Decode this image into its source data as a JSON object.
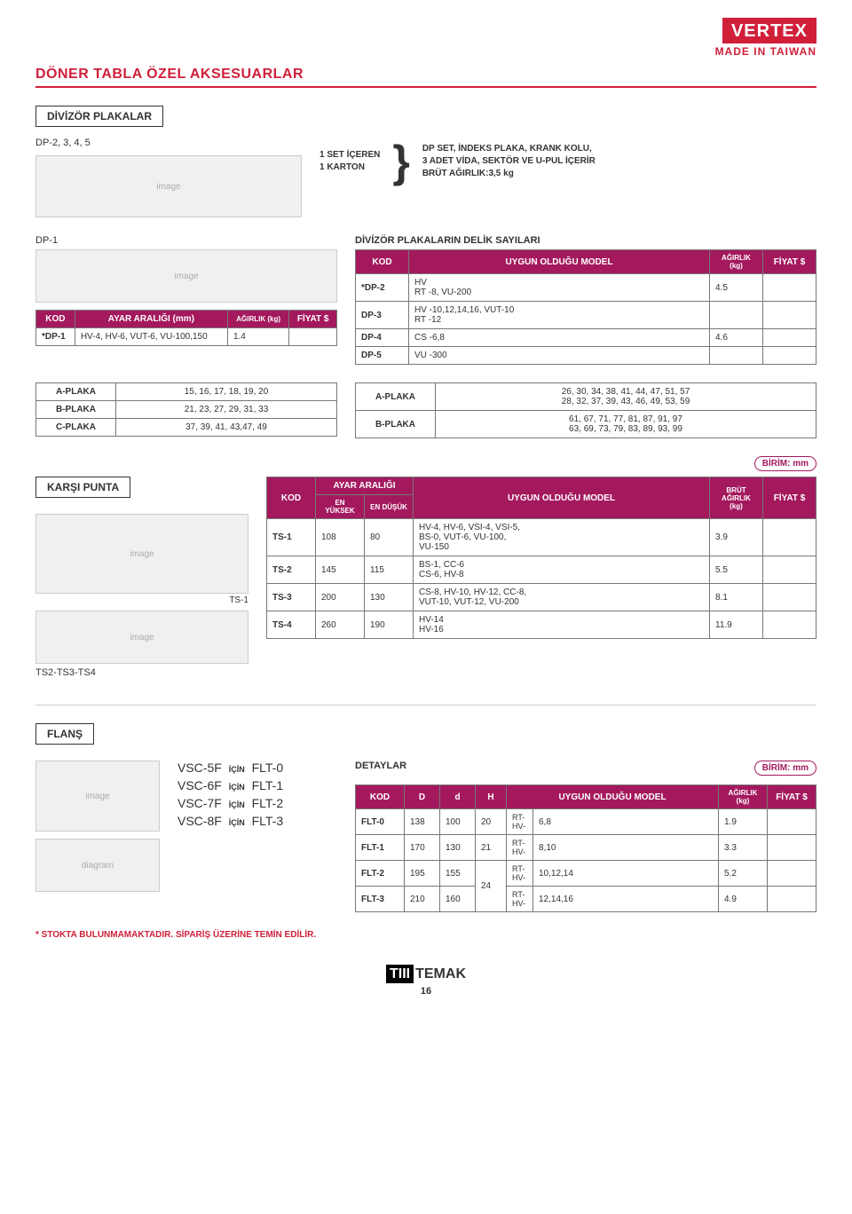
{
  "header": {
    "logo": "VERTEX",
    "made": "MADE IN TAIWAN"
  },
  "page_title": "DÖNER TABLA ÖZEL AKSESUARLAR",
  "sec1": {
    "label": "DİVİZÖR PLAKALAR",
    "dp_name": "DP-2, 3, 4, 5",
    "set_l1": "1 SET İÇEREN",
    "set_l2": "1 KARTON",
    "desc_l1": "DP SET, İNDEKS PLAKA, KRANK KOLU,",
    "desc_l2": "3 ADET VİDA, SEKTÖR VE U-PUL İÇERİR",
    "desc_l3": "BRÜT AĞIRLIK:3,5 kg"
  },
  "sec2": {
    "dp1": "DP-1",
    "tableA": {
      "h_kod": "KOD",
      "h_range": "AYAR ARALIĞI (mm)",
      "h_wt": "AĞIRLIK (kg)",
      "h_price": "FİYAT $",
      "r0": {
        "kod": "*DP-1",
        "range": "HV-4, HV-6, VUT-6, VU-100,150",
        "wt": "1.4",
        "price": ""
      }
    },
    "tableB_title": "DİVİZÖR PLAKALARIN DELİK SAYILARI",
    "tableB": {
      "h_kod": "KOD",
      "h_model": "UYGUN OLDUĞU MODEL",
      "h_wt": "AĞIRLIK (kg)",
      "h_price": "FİYAT $",
      "rows": [
        {
          "kod": "*DP-2",
          "model": "HV\nRT  -8, VU-200",
          "wt": "4.5",
          "price": ""
        },
        {
          "kod": "DP-3",
          "model": "HV  -10,12,14,16, VUT-10\nRT  -12",
          "wt": "",
          "price": ""
        },
        {
          "kod": "DP-4",
          "model": "CS  -6,8",
          "wt": "4.6",
          "price": ""
        },
        {
          "kod": "DP-5",
          "model": "VU  -300",
          "wt": "",
          "price": ""
        }
      ]
    }
  },
  "sec3": {
    "tableL": {
      "rows": [
        {
          "k": "A-PLAKA",
          "v": "15, 16, 17, 18, 19, 20"
        },
        {
          "k": "B-PLAKA",
          "v": "21, 23, 27, 29, 31, 33"
        },
        {
          "k": "C-PLAKA",
          "v": "37, 39, 41, 43,47, 49"
        }
      ]
    },
    "tableR": {
      "rows": [
        {
          "k": "A-PLAKA",
          "v": "26, 30, 34, 38, 41, 44, 47, 51, 57\n28, 32, 37, 39, 43, 46, 49, 53, 59"
        },
        {
          "k": "B-PLAKA",
          "v": "61, 67, 71, 77, 81, 87, 91, 97\n63, 69, 73, 79, 83, 89, 93, 99"
        }
      ]
    }
  },
  "sec4": {
    "unit": "BİRİM: mm",
    "label": "KARŞI PUNTA",
    "ts1": "TS-1",
    "ts234": "TS2-TS3-TS4",
    "table": {
      "h_kod": "KOD",
      "h_range": "AYAR ARALIĞI",
      "h_hi": "EN YÜKSEK",
      "h_lo": "EN DÜŞÜK",
      "h_model": "UYGUN OLDUĞU MODEL",
      "h_wt": "BRÜT AĞIRLIK (kg)",
      "h_price": "FİYAT $",
      "rows": [
        {
          "kod": "TS-1",
          "hi": "108",
          "lo": "80",
          "model": "HV-4, HV-6, VSI-4, VSI-5,\nBS-0, VUT-6, VU-100,\nVU-150",
          "wt": "3.9",
          "price": ""
        },
        {
          "kod": "TS-2",
          "hi": "145",
          "lo": "115",
          "model": "BS-1, CC-6\nCS-6, HV-8",
          "wt": "5.5",
          "price": ""
        },
        {
          "kod": "TS-3",
          "hi": "200",
          "lo": "130",
          "model": "CS-8, HV-10, HV-12, CC-8,\nVUT-10, VUT-12, VU-200",
          "wt": "8.1",
          "price": ""
        },
        {
          "kod": "TS-4",
          "hi": "260",
          "lo": "190",
          "model": "HV-14\nHV-16",
          "wt": "11.9",
          "price": ""
        }
      ]
    }
  },
  "sec5": {
    "label": "FLANŞ",
    "icin": "İÇİN",
    "map": [
      {
        "a": "VSC-5F",
        "b": "FLT-0"
      },
      {
        "a": "VSC-6F",
        "b": "FLT-1"
      },
      {
        "a": "VSC-7F",
        "b": "FLT-2"
      },
      {
        "a": "VSC-8F",
        "b": "FLT-3"
      }
    ],
    "detail_label": "DETAYLAR",
    "unit": "BİRİM: mm",
    "table": {
      "h_kod": "KOD",
      "h_D": "D",
      "h_d": "d",
      "h_H": "H",
      "h_model": "UYGUN OLDUĞU MODEL",
      "h_wt": "AĞIRLIK (kg)",
      "h_price": "FİYAT $",
      "rows": [
        {
          "kod": "FLT-0",
          "D": "138",
          "d": "100",
          "H": "20",
          "m1": "RT-\nHV-",
          "m2": "6,8",
          "wt": "1.9",
          "price": ""
        },
        {
          "kod": "FLT-1",
          "D": "170",
          "d": "130",
          "H": "21",
          "m1": "RT-\nHV-",
          "m2": "8,10",
          "wt": "3.3",
          "price": ""
        },
        {
          "kod": "FLT-2",
          "D": "195",
          "d": "155",
          "H": "",
          "m1": "RT-\nHV-",
          "m2": "10,12,14",
          "wt": "5.2",
          "price": ""
        },
        {
          "kod": "FLT-3",
          "D": "210",
          "d": "160",
          "H": "24",
          "m1": "RT-\nHV-",
          "m2": "12,14,16",
          "wt": "4.9",
          "price": ""
        }
      ]
    }
  },
  "footer": {
    "stock_note": "* STOKTA BULUNMAMAKTADIR. SİPARİŞ ÜZERİNE TEMİN EDİLİR.",
    "brand": "TEMAK",
    "page": "16"
  }
}
